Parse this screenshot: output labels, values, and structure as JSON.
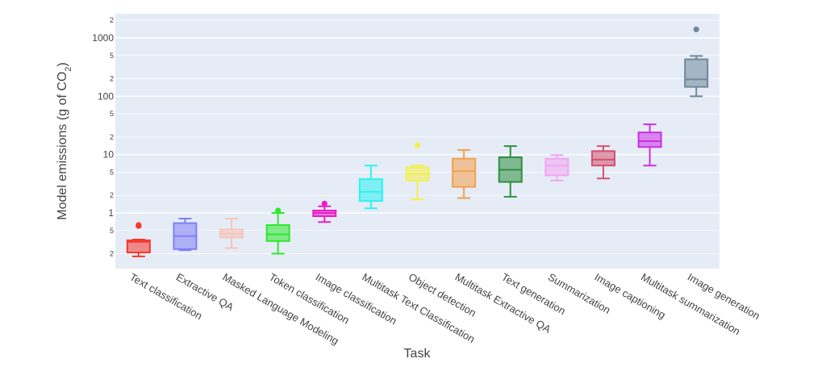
{
  "chart_data": {
    "type": "box",
    "title": "",
    "xlabel": "Task",
    "ylabel": "Model emissions (g of CO",
    "ylabel_sub": "2",
    "ylabel_close": ")",
    "yscale": "log",
    "ylim": [
      0.13,
      2200
    ],
    "major_ticks": [
      {
        "value": 1000,
        "label": "1000"
      },
      {
        "value": 100,
        "label": "100"
      },
      {
        "value": 10,
        "label": "10"
      },
      {
        "value": 1,
        "label": "1"
      }
    ],
    "minor_ticks": [
      {
        "value": 2000,
        "label": "2"
      },
      {
        "value": 500,
        "label": "5"
      },
      {
        "value": 200,
        "label": "2"
      },
      {
        "value": 50,
        "label": "5"
      },
      {
        "value": 20,
        "label": "2"
      },
      {
        "value": 5,
        "label": "5"
      },
      {
        "value": 2,
        "label": "2"
      },
      {
        "value": 0.5,
        "label": "5"
      },
      {
        "value": 0.2,
        "label": "2"
      }
    ],
    "background": "#e5ecf6",
    "gridline_color": "#ffffff",
    "series": [
      {
        "name": "Text classification",
        "color": "#f5372d",
        "min": 0.18,
        "q1": 0.21,
        "median": 0.32,
        "q3": 0.34,
        "max": 0.35,
        "outliers": [
          0.6,
          0.62
        ]
      },
      {
        "name": "Extractive QA",
        "color": "#7f7ff5",
        "min": 0.23,
        "q1": 0.24,
        "median": 0.4,
        "q3": 0.67,
        "max": 0.8,
        "outliers": []
      },
      {
        "name": "Masked Language Modeling",
        "color": "#f7c5b8",
        "min": 0.25,
        "q1": 0.38,
        "median": 0.44,
        "q3": 0.52,
        "max": 0.8,
        "outliers": []
      },
      {
        "name": "Token classification",
        "color": "#2ee82e",
        "min": 0.2,
        "q1": 0.33,
        "median": 0.43,
        "q3": 0.62,
        "max": 1.0,
        "outliers": [
          1.1
        ]
      },
      {
        "name": "Image classification",
        "color": "#e81cc8",
        "min": 0.7,
        "q1": 0.88,
        "median": 1.0,
        "q3": 1.1,
        "max": 1.3,
        "outliers": [
          1.45
        ]
      },
      {
        "name": "Multitask Text Classification",
        "color": "#2cf2f2",
        "min": 1.2,
        "q1": 1.6,
        "median": 2.3,
        "q3": 3.8,
        "max": 6.5,
        "outliers": []
      },
      {
        "name": "Object detection",
        "color": "#f5f04a",
        "min": 1.7,
        "q1": 3.6,
        "median": 4.7,
        "q3": 6.0,
        "max": 6.5,
        "outliers": [
          14.5
        ]
      },
      {
        "name": "Multitask Extractive QA",
        "color": "#f5a04a",
        "min": 1.8,
        "q1": 2.8,
        "median": 5.2,
        "q3": 8.5,
        "max": 12,
        "outliers": []
      },
      {
        "name": "Text generation",
        "color": "#2e8f3e",
        "min": 1.9,
        "q1": 3.4,
        "median": 5.5,
        "q3": 9.0,
        "max": 14,
        "outliers": []
      },
      {
        "name": "Summarization",
        "color": "#f2a6f2",
        "min": 3.6,
        "q1": 4.4,
        "median": 6.5,
        "q3": 8.5,
        "max": 9.8,
        "outliers": []
      },
      {
        "name": "Image captioning",
        "color": "#d4506e",
        "min": 3.9,
        "q1": 6.5,
        "median": 8.2,
        "q3": 11.5,
        "max": 14,
        "outliers": []
      },
      {
        "name": "Multitask summarization",
        "color": "#cc2ee6",
        "min": 6.5,
        "q1": 13.5,
        "median": 17,
        "q3": 24,
        "max": 33,
        "outliers": []
      },
      {
        "name": "Image generation",
        "color": "#6f8899",
        "min": 100,
        "q1": 145,
        "median": 195,
        "q3": 430,
        "max": 490,
        "outliers": [
          1400
        ]
      }
    ]
  }
}
